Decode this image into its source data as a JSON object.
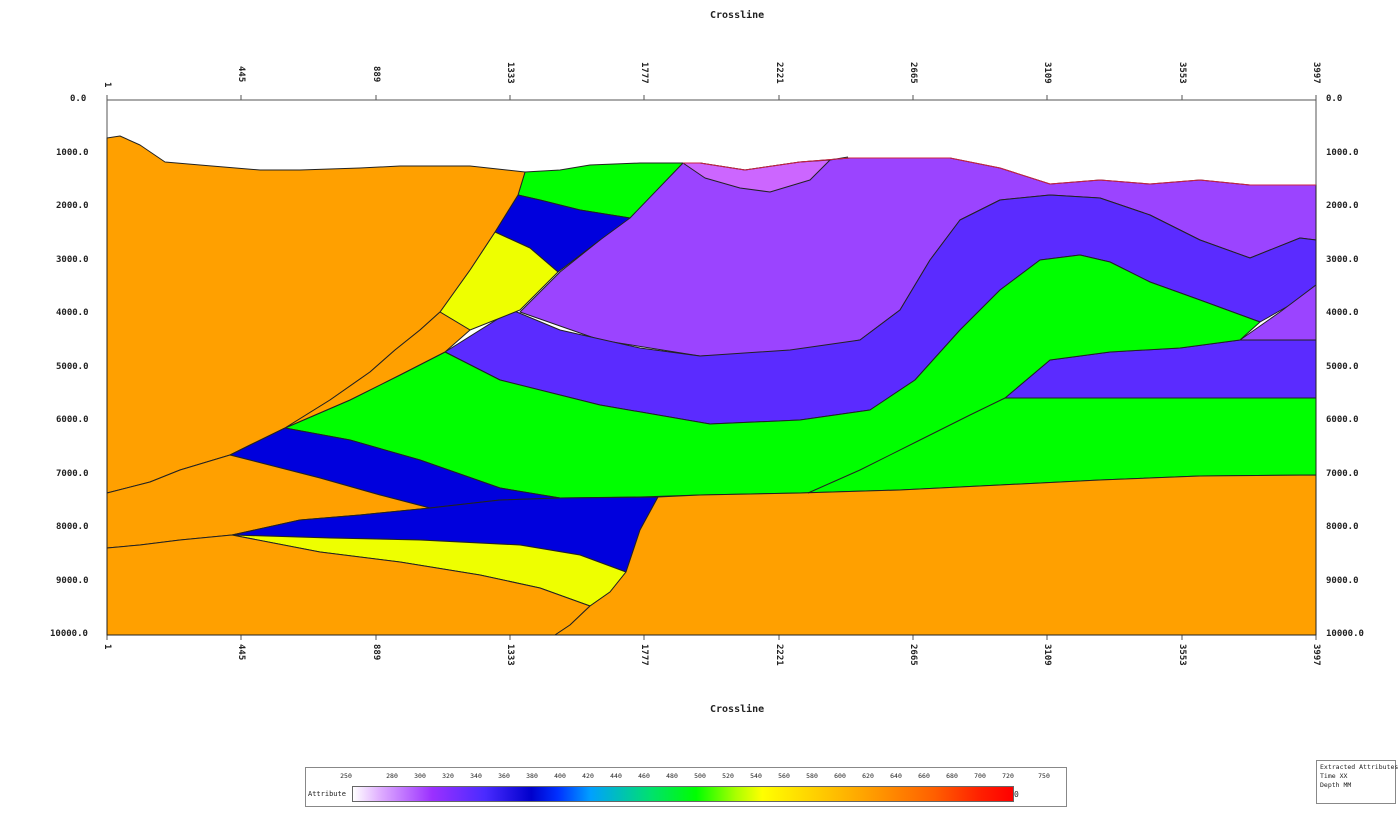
{
  "axis": {
    "top_title": "Crossline",
    "bottom_title": "Crossline",
    "top_ticks": [
      "1",
      "445",
      "889",
      "1333",
      "1777",
      "2221",
      "2665",
      "3109",
      "3553",
      "3997"
    ],
    "bottom_ticks": [
      "1",
      "445",
      "889",
      "1333",
      "1777",
      "2221",
      "2665",
      "3109",
      "3553",
      "3997"
    ],
    "y_ticks": [
      "0.0",
      "1000.0",
      "2000.0",
      "3000.0",
      "4000.0",
      "5000.0",
      "6000.0",
      "7000.0",
      "8000.0",
      "9000.0",
      "10000.0"
    ]
  },
  "colors": {
    "orange": "#ffa000",
    "green": "#00ff00",
    "blue": "#0000dd",
    "violet": "#5b2bff",
    "purple": "#9b44ff",
    "light_purple": "#cc66ff",
    "yellow": "#eeff00"
  },
  "colorbar": {
    "label": "Attribute",
    "ticks": [
      "250",
      "280",
      "300",
      "320",
      "340",
      "360",
      "380",
      "400",
      "420",
      "440",
      "460",
      "480",
      "500",
      "520",
      "540",
      "560",
      "580",
      "600",
      "620",
      "640",
      "660",
      "680",
      "700",
      "720",
      "750"
    ],
    "end_label": "0"
  },
  "infobox": {
    "line1": "Extracted Attributes",
    "line2": "Time  XX",
    "line3": "Depth  MM"
  }
}
